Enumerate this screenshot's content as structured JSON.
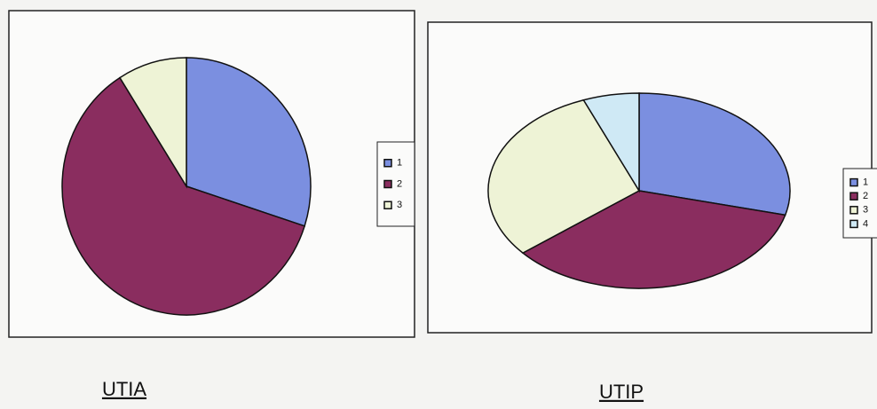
{
  "chart_data": [
    {
      "type": "pie",
      "title": "UTIA",
      "categories": [
        "1",
        "2",
        "3"
      ],
      "values": [
        30,
        61,
        9
      ],
      "colors": [
        "#7b8fe0",
        "#8a2d5f",
        "#eef3d6"
      ],
      "legend": "right"
    },
    {
      "type": "pie",
      "title": "UTIP",
      "categories": [
        "1",
        "2",
        "3",
        "4"
      ],
      "values": [
        29,
        35,
        30,
        6
      ],
      "colors": [
        "#7b8fe0",
        "#8a2d5f",
        "#eef3d6",
        "#cfe9f5"
      ],
      "legend": "right"
    }
  ]
}
